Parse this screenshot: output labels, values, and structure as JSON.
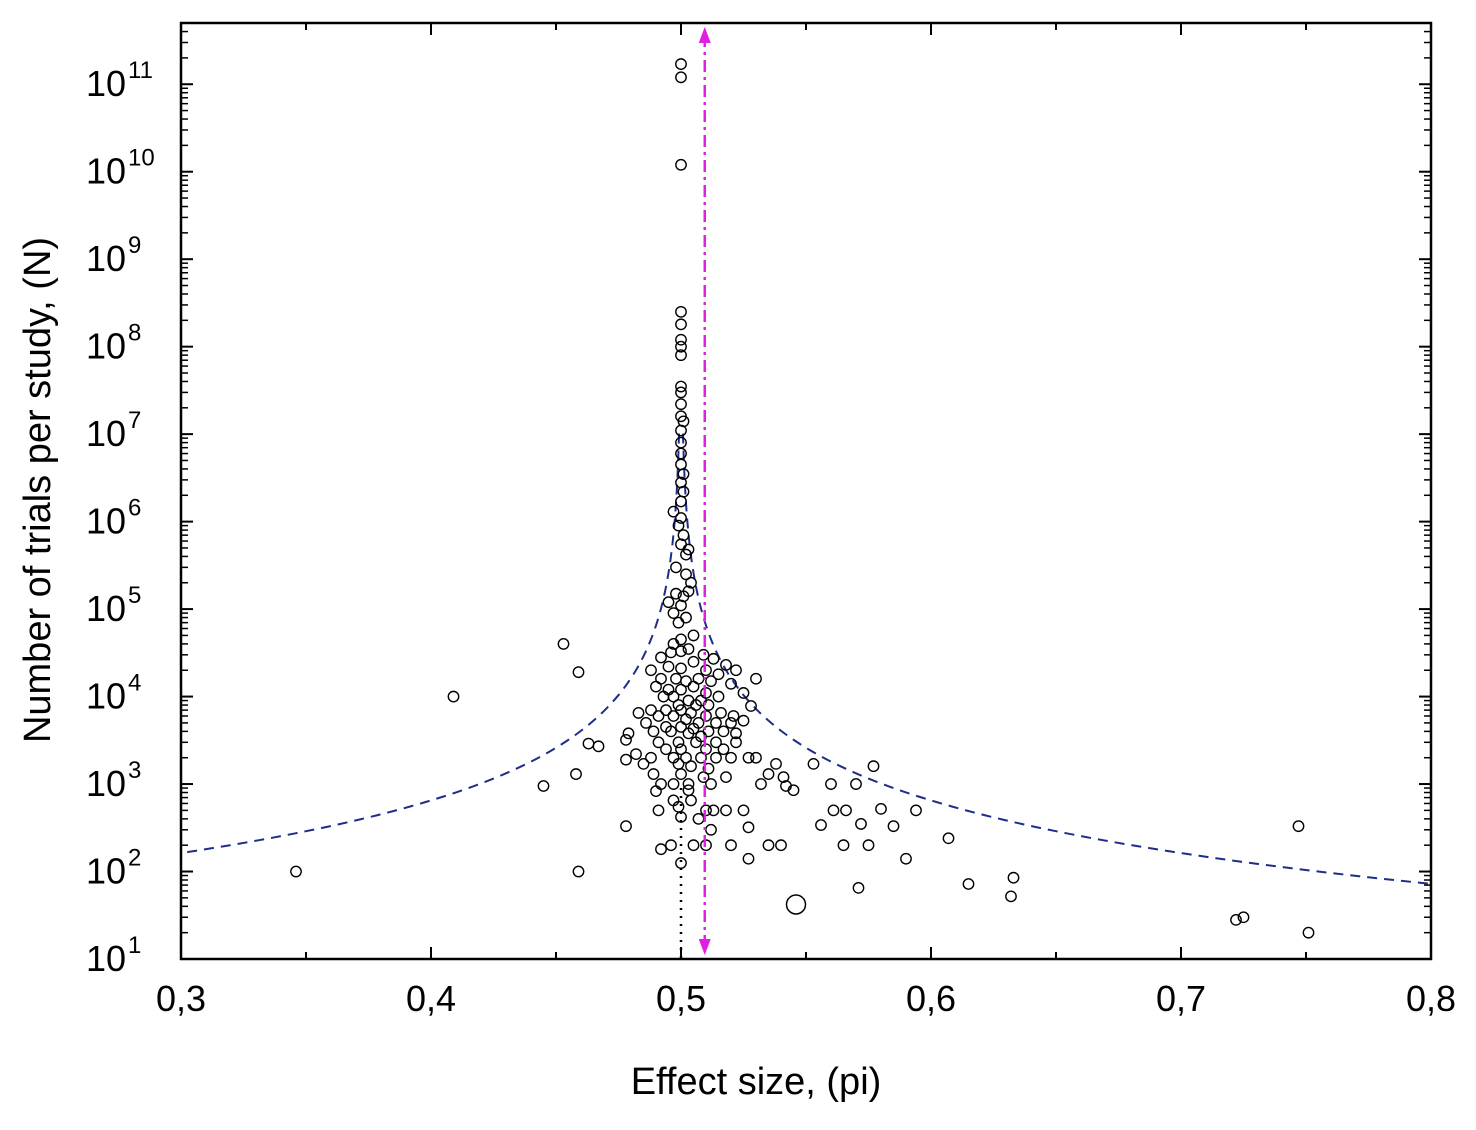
{
  "chart_data": {
    "type": "scatter",
    "title": "",
    "xlabel": "Effect size, (pi)",
    "ylabel": "Number of trials per study, (N)",
    "xlim": [
      0.3,
      0.8
    ],
    "ylim_log10": [
      1,
      11.7
    ],
    "y_scale": "log10",
    "x_ticks": [
      {
        "value": 0.3,
        "label": "0,3"
      },
      {
        "value": 0.4,
        "label": "0,4"
      },
      {
        "value": 0.5,
        "label": "0,5"
      },
      {
        "value": 0.6,
        "label": "0,6"
      },
      {
        "value": 0.7,
        "label": "0,7"
      },
      {
        "value": 0.8,
        "label": "0,8"
      }
    ],
    "y_ticks": [
      {
        "exp": 1,
        "base": "10",
        "sup": "1"
      },
      {
        "exp": 2,
        "base": "10",
        "sup": "2"
      },
      {
        "exp": 3,
        "base": "10",
        "sup": "3"
      },
      {
        "exp": 4,
        "base": "10",
        "sup": "4"
      },
      {
        "exp": 5,
        "base": "10",
        "sup": "5"
      },
      {
        "exp": 6,
        "base": "10",
        "sup": "6"
      },
      {
        "exp": 7,
        "base": "10",
        "sup": "7"
      },
      {
        "exp": 8,
        "base": "10",
        "sup": "8"
      },
      {
        "exp": 9,
        "base": "10",
        "sup": "9"
      },
      {
        "exp": 10,
        "base": "10",
        "sup": "10"
      },
      {
        "exp": 11,
        "base": "10",
        "sup": "11"
      }
    ],
    "reference_lines": [
      {
        "name": "null-effect-line",
        "x": 0.5,
        "style": "dotted",
        "color": "#000000"
      },
      {
        "name": "mean-effect-line",
        "x": 0.5095,
        "style": "dash-dot",
        "color": "#e020e0",
        "arrows": true
      }
    ],
    "funnel_curve": {
      "center": 0.5,
      "color": "#1f2d8a",
      "solid_above_log10": 7
    },
    "colors": {
      "marker": "#000000",
      "funnel": "#1f2d8a",
      "mean": "#e020e0"
    },
    "points": [
      [
        0.5,
        170000000000.0
      ],
      [
        0.5,
        120000000000.0
      ],
      [
        0.5,
        12000000000.0
      ],
      [
        0.5,
        250000000.0
      ],
      [
        0.5,
        180000000.0
      ],
      [
        0.5,
        120000000.0
      ],
      [
        0.5,
        100000000.0
      ],
      [
        0.5,
        80000000.0
      ],
      [
        0.5,
        35000000.0
      ],
      [
        0.5,
        30000000.0
      ],
      [
        0.5,
        22000000.0
      ],
      [
        0.5,
        16000000.0
      ],
      [
        0.501,
        14000000.0
      ],
      [
        0.5,
        11000000.0
      ],
      [
        0.5,
        8000000.0
      ],
      [
        0.5,
        6000000.0
      ],
      [
        0.5,
        4500000.0
      ],
      [
        0.501,
        3500000.0
      ],
      [
        0.5,
        2800000.0
      ],
      [
        0.501,
        2200000.0
      ],
      [
        0.5,
        1700000.0
      ],
      [
        0.497,
        1300000.0
      ],
      [
        0.5,
        1100000.0
      ],
      [
        0.499,
        900000.0
      ],
      [
        0.501,
        700000.0
      ],
      [
        0.5,
        550000.0
      ],
      [
        0.503,
        480000.0
      ],
      [
        0.502,
        420000.0
      ],
      [
        0.498,
        300000.0
      ],
      [
        0.502,
        250000.0
      ],
      [
        0.504,
        200000.0
      ],
      [
        0.503,
        160000.0
      ],
      [
        0.498,
        150000.0
      ],
      [
        0.501,
        140000.0
      ],
      [
        0.495,
        120000.0
      ],
      [
        0.5,
        110000.0
      ],
      [
        0.497,
        90000.0
      ],
      [
        0.502,
        80000.0
      ],
      [
        0.499,
        70000.0
      ],
      [
        0.505,
        50000.0
      ],
      [
        0.5,
        45000.0
      ],
      [
        0.497,
        40000.0
      ],
      [
        0.453,
        40000.0
      ],
      [
        0.459,
        19000.0
      ],
      [
        0.409,
        10000.0
      ],
      [
        0.492,
        28000.0
      ],
      [
        0.496,
        32000.0
      ],
      [
        0.5,
        33000.0
      ],
      [
        0.503,
        35000.0
      ],
      [
        0.509,
        30000.0
      ],
      [
        0.513,
        27000.0
      ],
      [
        0.518,
        23000.0
      ],
      [
        0.522,
        20000.0
      ],
      [
        0.488,
        20000.0
      ],
      [
        0.495,
        22000.0
      ],
      [
        0.5,
        21000.0
      ],
      [
        0.505,
        25000.0
      ],
      [
        0.51,
        20000.0
      ],
      [
        0.515,
        18000.0
      ],
      [
        0.492,
        16000.0
      ],
      [
        0.498,
        16000.0
      ],
      [
        0.502,
        15000.0
      ],
      [
        0.507,
        16000.0
      ],
      [
        0.512,
        15000.0
      ],
      [
        0.53,
        16000.0
      ],
      [
        0.52,
        14000.0
      ],
      [
        0.49,
        13000.0
      ],
      [
        0.495,
        12000.0
      ],
      [
        0.5,
        12000.0
      ],
      [
        0.505,
        13000.0
      ],
      [
        0.51,
        11000.0
      ],
      [
        0.515,
        10000.0
      ],
      [
        0.525,
        11000.0
      ],
      [
        0.493,
        10000.0
      ],
      [
        0.497,
        10000.0
      ],
      [
        0.503,
        9000.0
      ],
      [
        0.508,
        9000.0
      ],
      [
        0.499,
        8000.0
      ],
      [
        0.506,
        8000.0
      ],
      [
        0.511,
        8000.0
      ],
      [
        0.528,
        7800.0
      ],
      [
        0.488,
        7000.0
      ],
      [
        0.494,
        7000.0
      ],
      [
        0.5,
        7000.0
      ],
      [
        0.504,
        6500.0
      ],
      [
        0.51,
        6000.0
      ],
      [
        0.516,
        6500.0
      ],
      [
        0.521,
        6000.0
      ],
      [
        0.483,
        6500.0
      ],
      [
        0.491,
        6000.0
      ],
      [
        0.497,
        6000.0
      ],
      [
        0.502,
        5500.0
      ],
      [
        0.507,
        5000.0
      ],
      [
        0.514,
        5000.0
      ],
      [
        0.52,
        5000.0
      ],
      [
        0.525,
        5300.0
      ],
      [
        0.486,
        5000.0
      ],
      [
        0.494,
        4500.0
      ],
      [
        0.5,
        4500.0
      ],
      [
        0.505,
        4300.0
      ],
      [
        0.511,
        4000.0
      ],
      [
        0.517,
        4000.0
      ],
      [
        0.522,
        3800.0
      ],
      [
        0.479,
        3800.0
      ],
      [
        0.489,
        4000.0
      ],
      [
        0.496,
        4000.0
      ],
      [
        0.503,
        3800.0
      ],
      [
        0.508,
        3500.0
      ],
      [
        0.478,
        3200.0
      ],
      [
        0.491,
        3000.0
      ],
      [
        0.499,
        3000.0
      ],
      [
        0.506,
        3000.0
      ],
      [
        0.514,
        3000.0
      ],
      [
        0.522,
        3000.0
      ],
      [
        0.463,
        2900.0
      ],
      [
        0.467,
        2700.0
      ],
      [
        0.494,
        2500.0
      ],
      [
        0.5,
        2500.0
      ],
      [
        0.51,
        2500.0
      ],
      [
        0.517,
        2500.0
      ],
      [
        0.482,
        2200.0
      ],
      [
        0.488,
        2000.0
      ],
      [
        0.497,
        2000.0
      ],
      [
        0.502,
        2000.0
      ],
      [
        0.508,
        2000.0
      ],
      [
        0.514,
        2000.0
      ],
      [
        0.52,
        2000.0
      ],
      [
        0.527,
        2000.0
      ],
      [
        0.53,
        2000.0
      ],
      [
        0.478,
        1900.0
      ],
      [
        0.485,
        1700.0
      ],
      [
        0.499,
        1700.0
      ],
      [
        0.504,
        1600.0
      ],
      [
        0.511,
        1500.0
      ],
      [
        0.538,
        1700.0
      ],
      [
        0.553,
        1700.0
      ],
      [
        0.577,
        1600.0
      ],
      [
        0.458,
        1300.0
      ],
      [
        0.489,
        1300.0
      ],
      [
        0.5,
        1300.0
      ],
      [
        0.509,
        1200.0
      ],
      [
        0.518,
        1200.0
      ],
      [
        0.535,
        1300.0
      ],
      [
        0.541,
        1200.0
      ],
      [
        0.445,
        950
      ],
      [
        0.492,
        1000.0
      ],
      [
        0.497,
        1000.0
      ],
      [
        0.503,
        1000.0
      ],
      [
        0.512,
        1000.0
      ],
      [
        0.532,
        1000.0
      ],
      [
        0.542,
        950
      ],
      [
        0.56,
        1000.0
      ],
      [
        0.57,
        1000.0
      ],
      [
        0.49,
        830
      ],
      [
        0.503,
        850
      ],
      [
        0.545,
        850
      ],
      [
        0.497,
        650
      ],
      [
        0.504,
        650
      ],
      [
        0.499,
        550
      ],
      [
        0.491,
        500
      ],
      [
        0.51,
        500
      ],
      [
        0.513,
        500
      ],
      [
        0.518,
        500
      ],
      [
        0.525,
        500
      ],
      [
        0.561,
        500
      ],
      [
        0.566,
        500
      ],
      [
        0.58,
        520
      ],
      [
        0.594,
        500
      ],
      [
        0.5,
        420
      ],
      [
        0.507,
        400
      ],
      [
        0.478,
        330
      ],
      [
        0.512,
        300
      ],
      [
        0.527,
        320
      ],
      [
        0.556,
        340
      ],
      [
        0.572,
        350
      ],
      [
        0.585,
        330
      ],
      [
        0.747,
        330
      ],
      [
        0.607,
        240
      ],
      [
        0.492,
        180
      ],
      [
        0.496,
        200
      ],
      [
        0.505,
        200
      ],
      [
        0.51,
        200
      ],
      [
        0.52,
        200
      ],
      [
        0.535,
        200
      ],
      [
        0.54,
        200
      ],
      [
        0.565,
        200
      ],
      [
        0.575,
        200
      ],
      [
        0.527,
        140
      ],
      [
        0.59,
        140
      ],
      [
        0.5,
        125
      ],
      [
        0.346,
        100
      ],
      [
        0.459,
        100
      ],
      [
        0.615,
        72
      ],
      [
        0.633,
        85
      ],
      [
        0.571,
        65
      ],
      [
        0.632,
        52
      ],
      [
        0.722,
        28
      ],
      [
        0.725,
        30
      ],
      [
        0.751,
        20
      ]
    ],
    "large_points": [
      [
        0.546,
        42
      ]
    ]
  }
}
